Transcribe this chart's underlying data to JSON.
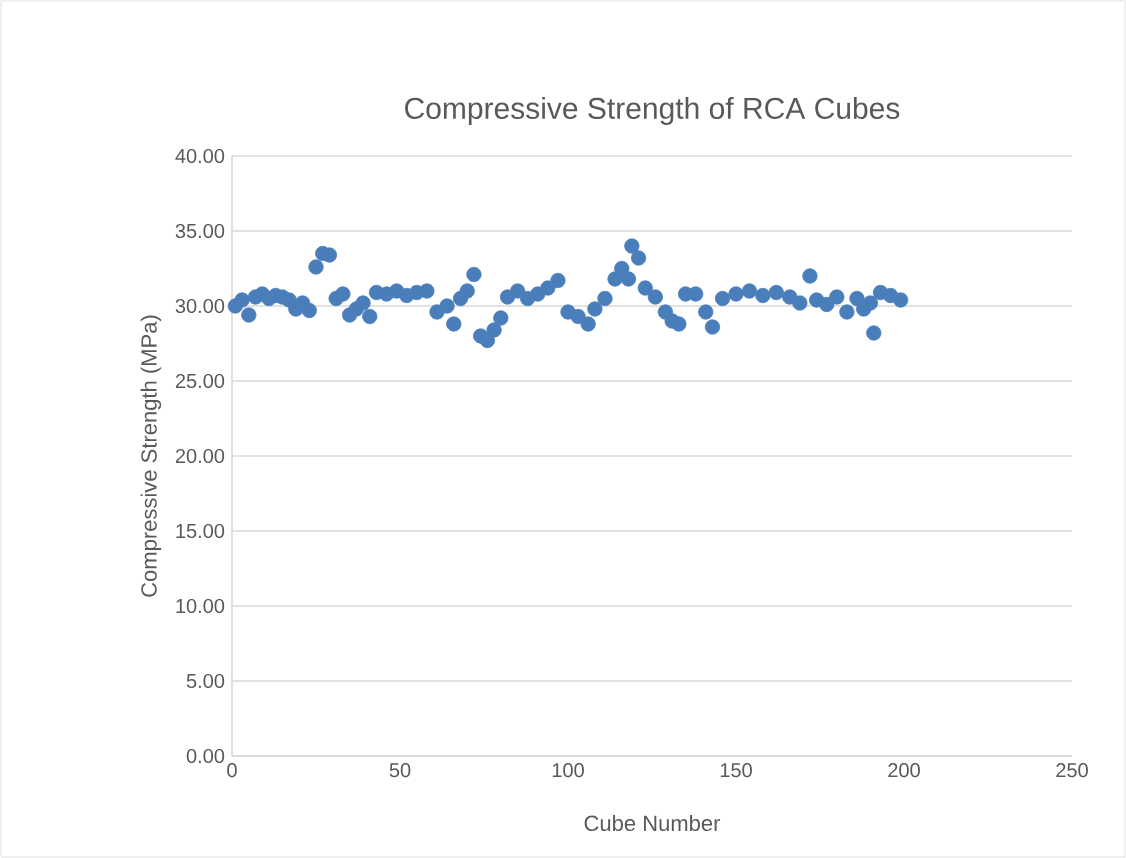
{
  "chart_data": {
    "type": "scatter",
    "title": "Compressive Strength of RCA Cubes",
    "xlabel": "Cube Number",
    "ylabel": "Compressive Strength (MPa)",
    "marker": "circle",
    "grid": "y",
    "x": [
      1,
      3,
      5,
      7,
      9,
      11,
      13,
      15,
      17,
      19,
      21,
      23,
      25,
      27,
      29,
      31,
      33,
      35,
      37,
      39,
      41,
      43,
      46,
      49,
      52,
      55,
      58,
      61,
      64,
      66,
      68,
      70,
      72,
      74,
      76,
      78,
      80,
      82,
      85,
      88,
      91,
      94,
      97,
      100,
      103,
      106,
      108,
      111,
      114,
      116,
      118,
      119,
      121,
      123,
      126,
      129,
      131,
      133,
      135,
      138,
      141,
      143,
      146,
      150,
      154,
      158,
      162,
      166,
      169,
      172,
      174,
      177,
      180,
      183,
      186,
      188,
      190,
      191,
      193,
      196,
      199
    ],
    "values": [
      30.0,
      30.4,
      29.4,
      30.6,
      30.8,
      30.5,
      30.7,
      30.6,
      30.4,
      29.8,
      30.2,
      29.7,
      32.6,
      33.5,
      33.4,
      30.5,
      30.8,
      29.4,
      29.8,
      30.2,
      29.3,
      30.9,
      30.8,
      31.0,
      30.7,
      30.9,
      31.0,
      29.6,
      30.0,
      28.8,
      30.5,
      31.0,
      32.1,
      28.0,
      27.7,
      28.4,
      29.2,
      30.6,
      31.0,
      30.5,
      30.8,
      31.2,
      31.7,
      29.6,
      29.3,
      28.8,
      29.8,
      30.5,
      31.8,
      32.5,
      31.8,
      34.0,
      33.2,
      31.2,
      30.6,
      29.6,
      29.0,
      28.8,
      30.8,
      30.8,
      29.6,
      28.6,
      30.5,
      30.8,
      31.0,
      30.7,
      30.9,
      30.6,
      30.2,
      32.0,
      30.4,
      30.1,
      30.6,
      29.6,
      30.5,
      29.8,
      30.2,
      28.2,
      30.9,
      30.7,
      30.4
    ],
    "color": "#4a7ebb",
    "xlim": [
      0,
      250
    ],
    "ylim": [
      0,
      40
    ],
    "xticks": [
      0,
      50,
      100,
      150,
      200,
      250
    ],
    "yticks": [
      {
        "value": 0,
        "label": "0.00"
      },
      {
        "value": 5,
        "label": "5.00"
      },
      {
        "value": 10,
        "label": "10.00"
      },
      {
        "value": 15,
        "label": "15.00"
      },
      {
        "value": 20,
        "label": "20.00"
      },
      {
        "value": 25,
        "label": "25.00"
      },
      {
        "value": 30,
        "label": "30.00"
      },
      {
        "value": 35,
        "label": "35.00"
      },
      {
        "value": 40,
        "label": "40.00"
      }
    ]
  }
}
